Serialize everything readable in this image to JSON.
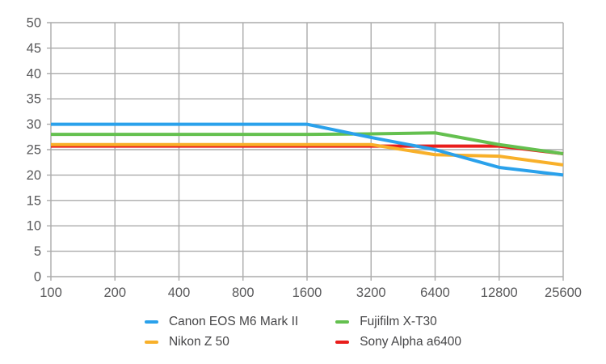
{
  "chart_data": {
    "type": "line",
    "title": "",
    "x_axis": {
      "label": "",
      "scale": "log2-categorical",
      "tick_labels": [
        "100",
        "200",
        "400",
        "800",
        "1600",
        "3200",
        "6400",
        "12800",
        "25600"
      ]
    },
    "y_axis": {
      "label": "",
      "min": 0,
      "max": 50,
      "step": 5,
      "tick_labels": [
        "0",
        "5",
        "10",
        "15",
        "20",
        "25",
        "30",
        "35",
        "40",
        "45",
        "50"
      ]
    },
    "grid": true,
    "legend_position": "bottom-center",
    "draw_order": "series listed bottom-to-top; Sony overlaps hidden under Nikon/Fujifilm on flat segments",
    "series": [
      {
        "name": "Sony Alpha a6400",
        "color": "#E91D1B",
        "values": [
          25.7,
          25.7,
          25.7,
          25.7,
          25.7,
          25.7,
          25.7,
          25.7,
          24.2
        ]
      },
      {
        "name": "Nikon Z 50",
        "color": "#F8B02A",
        "values": [
          26,
          26,
          26,
          26,
          26,
          26,
          24,
          23.7,
          22
        ]
      },
      {
        "name": "Fujifilm X-T30",
        "color": "#64C04F",
        "values": [
          28,
          28,
          28,
          28,
          28,
          28.1,
          28.3,
          26,
          24.2
        ]
      },
      {
        "name": "Canon EOS M6 Mark II",
        "color": "#2AA1EB",
        "values": [
          30,
          30,
          30,
          30,
          30,
          27.4,
          25,
          21.5,
          20
        ]
      }
    ]
  },
  "style": {
    "grid_color": "#ABABAB",
    "axis_label_color": "#58585A",
    "legend_text_color": "#454547",
    "background": "#FFFFFF"
  }
}
